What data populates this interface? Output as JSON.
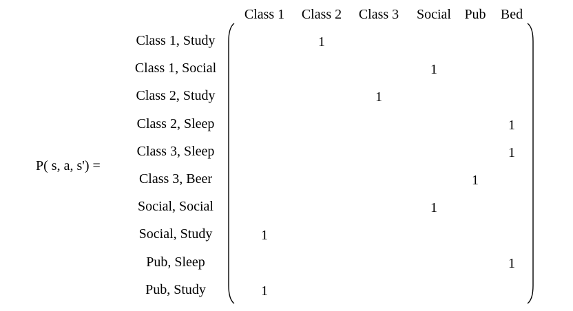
{
  "lhs": "P( s, a, s') =",
  "columns": [
    "Class 1",
    "Class 2",
    "Class 3",
    "Social",
    "Pub",
    "Bed"
  ],
  "rows": [
    {
      "label": "Class 1,  Study",
      "one_in": "Class 2"
    },
    {
      "label": "Class 1,  Social",
      "one_in": "Social"
    },
    {
      "label": "Class 2,  Study",
      "one_in": "Class 3"
    },
    {
      "label": "Class 2,  Sleep",
      "one_in": "Bed"
    },
    {
      "label": "Class 3,  Sleep",
      "one_in": "Bed"
    },
    {
      "label": "Class 3,  Beer",
      "one_in": "Pub"
    },
    {
      "label": "Social,  Social",
      "one_in": "Social"
    },
    {
      "label": "Social,  Study",
      "one_in": "Class 1"
    },
    {
      "label": "Pub,  Sleep",
      "one_in": "Bed"
    },
    {
      "label": "Pub,  Study",
      "one_in": "Class 1"
    }
  ],
  "cell_value": "1"
}
